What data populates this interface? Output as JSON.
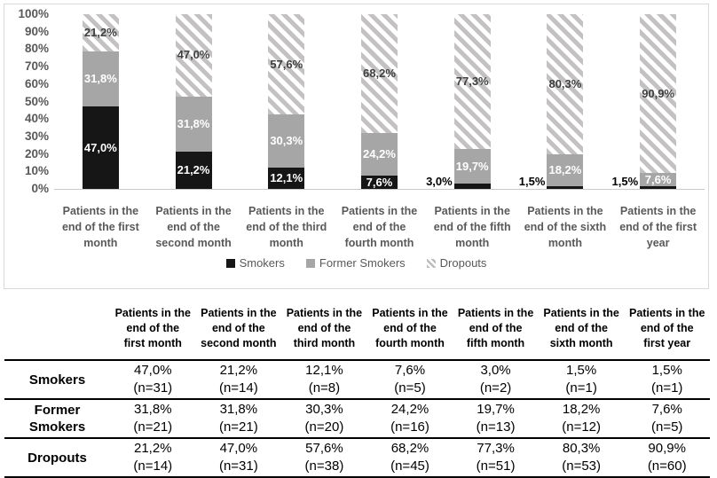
{
  "chart_data": {
    "type": "bar",
    "variant": "stacked-100-percent",
    "title": "",
    "xlabel": "",
    "ylabel": "",
    "grid": false,
    "categories": [
      "Patients in the end of the first month",
      "Patients in the end of the second month",
      "Patients in the end of the third month",
      "Patients in the end of the fourth month",
      "Patients in the end of the fifth month",
      "Patients in the end of the sixth month",
      "Patients in the end of the first year"
    ],
    "series": [
      {
        "name": "Smokers",
        "style": "solid-black",
        "color": "#161616",
        "values": [
          47.0,
          21.2,
          12.1,
          7.6,
          3.0,
          1.5,
          1.5
        ],
        "labels": [
          "47,0%",
          "21,2%",
          "12,1%",
          "7,6%",
          "3,0%",
          "1,5%",
          "1,5%"
        ]
      },
      {
        "name": "Former Smokers",
        "style": "solid-gray",
        "color": "#a6a6a6",
        "values": [
          31.8,
          31.8,
          30.3,
          24.2,
          19.7,
          18.2,
          7.6
        ],
        "labels": [
          "31,8%",
          "31,8%",
          "30,3%",
          "24,2%",
          "19,7%",
          "18,2%",
          "7,6%"
        ]
      },
      {
        "name": "Dropouts",
        "style": "diagonal-hatch",
        "color": "#c3c1c1",
        "values": [
          21.2,
          47.0,
          57.6,
          68.2,
          77.3,
          80.3,
          90.9
        ],
        "labels": [
          "21,2%",
          "47,0%",
          "57,6%",
          "68,2%",
          "77,3%",
          "80,3%",
          "90,9%"
        ]
      }
    ],
    "y_axis": {
      "min": 0,
      "max": 100,
      "ticks": [
        "100%",
        "90%",
        "80%",
        "70%",
        "60%",
        "50%",
        "40%",
        "30%",
        "20%",
        "10%",
        "0%"
      ]
    },
    "legend": {
      "position": "bottom",
      "items": [
        {
          "label": "Smokers",
          "swatch": "black"
        },
        {
          "label": "Former Smokers",
          "swatch": "gray"
        },
        {
          "label": "Dropouts",
          "swatch": "hatch"
        }
      ]
    }
  },
  "table": {
    "columns": [
      "",
      "Patients in the end of the first month",
      "Patients in the end of the second month",
      "Patients in the end of the third month",
      "Patients in the end of the fourth month",
      "Patients in the end of the fifth month",
      "Patients in the end of the sixth month",
      "Patients in the end of the first year"
    ],
    "rows": [
      {
        "label": "Smokers",
        "cells": [
          {
            "pct": "47,0%",
            "n": "(n=31)"
          },
          {
            "pct": "21,2%",
            "n": "(n=14)"
          },
          {
            "pct": "12,1%",
            "n": "(n=8)"
          },
          {
            "pct": "7,6%",
            "n": "(n=5)"
          },
          {
            "pct": "3,0%",
            "n": "(n=2)"
          },
          {
            "pct": "1,5%",
            "n": "(n=1)"
          },
          {
            "pct": "1,5%",
            "n": "(n=1)"
          }
        ]
      },
      {
        "label": "Former Smokers",
        "cells": [
          {
            "pct": "31,8%",
            "n": "(n=21)"
          },
          {
            "pct": "31,8%",
            "n": "(n=21)"
          },
          {
            "pct": "30,3%",
            "n": "(n=20)"
          },
          {
            "pct": "24,2%",
            "n": "(n=16)"
          },
          {
            "pct": "19,7%",
            "n": "(n=13)"
          },
          {
            "pct": "18,2%",
            "n": "(n=12)"
          },
          {
            "pct": "7,6%",
            "n": "(n=5)"
          }
        ]
      },
      {
        "label": "Dropouts",
        "cells": [
          {
            "pct": "21,2%",
            "n": "(n=14)"
          },
          {
            "pct": "47,0%",
            "n": "(n=31)"
          },
          {
            "pct": "57,6%",
            "n": "(n=38)"
          },
          {
            "pct": "68,2%",
            "n": "(n=45)"
          },
          {
            "pct": "77,3%",
            "n": "(n=51)"
          },
          {
            "pct": "80,3%",
            "n": "(n=53)"
          },
          {
            "pct": "90,9%",
            "n": "(n=60)"
          }
        ]
      }
    ]
  },
  "colors": {
    "smokers_fill": "#161616",
    "former_smokers_fill": "#a6a6a6",
    "hatch_stripe": "#c3c1c1",
    "axis_text": "#595959",
    "panel_border": "#d9d9d9",
    "label_on_solid": "#ffffff",
    "label_on_hatch": "#3f3f3f",
    "label_outside": "#000000",
    "table_rule": "#000000"
  }
}
